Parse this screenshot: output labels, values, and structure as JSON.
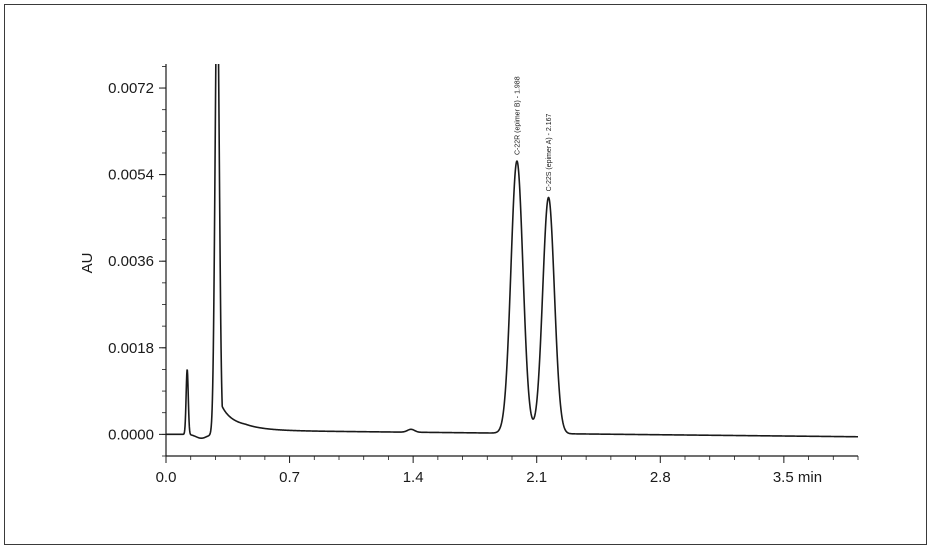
{
  "chart_data": {
    "type": "line",
    "title": "",
    "xlabel": "",
    "x_unit": "min",
    "ylabel": "AU",
    "xlim": [
      0.0,
      3.92
    ],
    "ylim": [
      -0.00045,
      0.0077
    ],
    "x_ticks": [
      0.0,
      0.7,
      1.4,
      2.1,
      2.8,
      3.5
    ],
    "x_tick_labels": [
      "0.0",
      "0.7",
      "1.4",
      "2.1",
      "2.8",
      "3.5"
    ],
    "y_ticks": [
      0.0,
      0.0018,
      0.0036,
      0.0054,
      0.0072
    ],
    "y_tick_labels": [
      "0.0000",
      "0.0018",
      "0.0036",
      "0.0054",
      "0.0072"
    ],
    "grid": false,
    "line_color": "#1a1a1a",
    "baseline": [
      {
        "x_start": 0.0,
        "x_end": 0.28,
        "y_start": 0.0,
        "y_end": 0.0
      },
      {
        "x_start": 0.45,
        "x_end": 3.92,
        "y_start": 8e-05,
        "y_end": -5e-05
      }
    ],
    "peaks": [
      {
        "rt": 0.12,
        "height": 0.00135,
        "width": 0.006
      },
      {
        "rt": 0.29,
        "height": 0.0095,
        "width": 0.012,
        "tail": 0.03
      },
      {
        "rt": 1.388,
        "height": 6e-05,
        "width": 0.02
      },
      {
        "rt": 1.988,
        "height": 0.00566,
        "width": 0.034,
        "label": "C-22R (epimer B) - 1.988"
      },
      {
        "rt": 2.167,
        "height": 0.00491,
        "width": 0.033,
        "label": "C-22S (epimer A) - 2.167"
      }
    ]
  }
}
